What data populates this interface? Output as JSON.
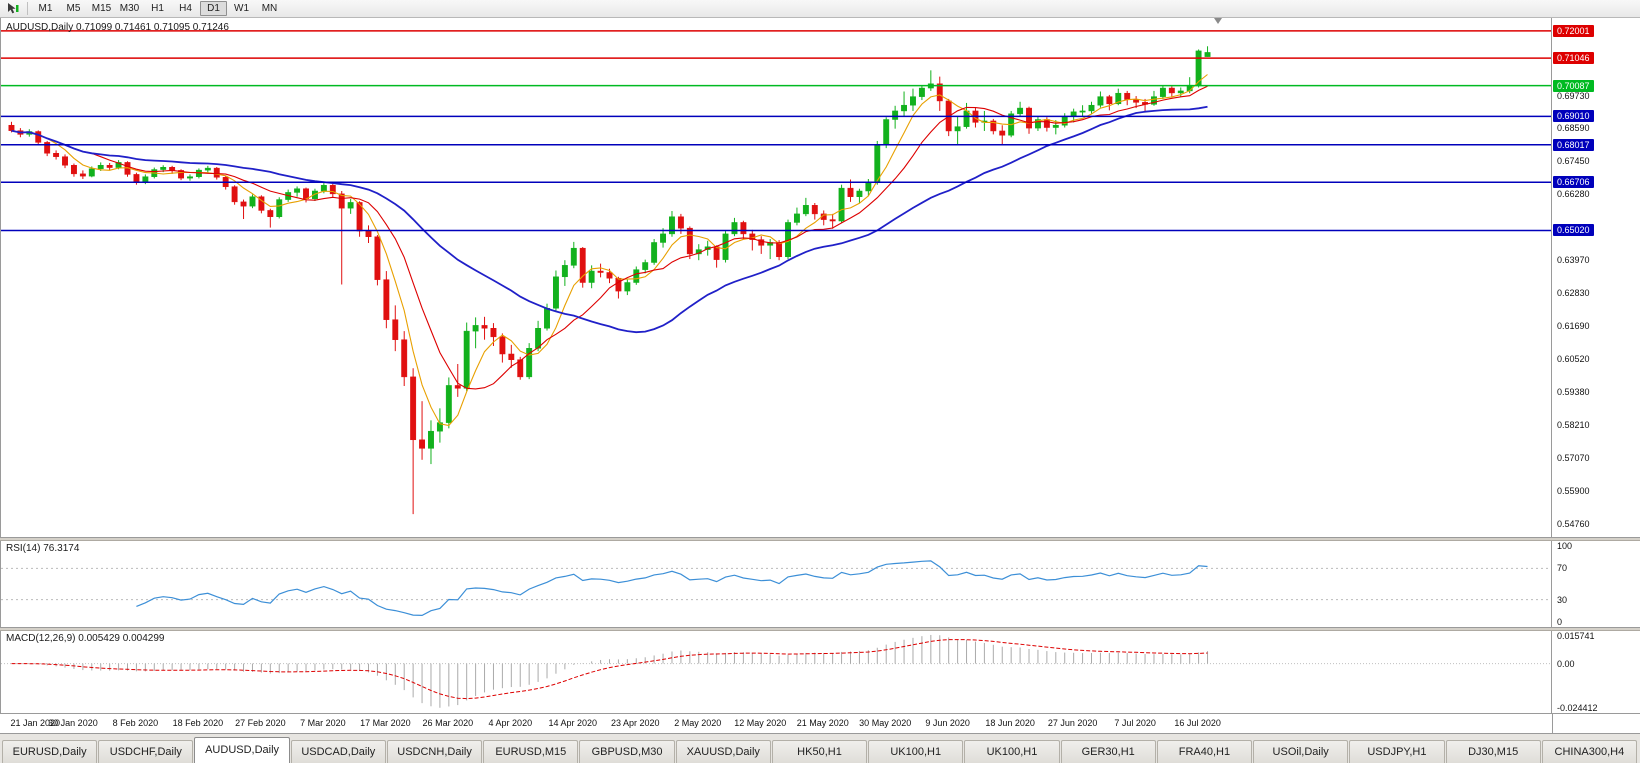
{
  "toolbar": {
    "timeframes": [
      "M1",
      "M5",
      "M15",
      "M30",
      "H1",
      "H4",
      "D1",
      "W1",
      "MN"
    ],
    "active_timeframe": "D1"
  },
  "main_chart": {
    "title": "AUDUSD,Daily 0.71099 0.71461 0.71095 0.71246"
  },
  "chart_data": {
    "type": "candlestick",
    "symbol": "AUDUSD",
    "period": "Daily",
    "ohlc": {
      "open": 0.71099,
      "high": 0.71461,
      "low": 0.71095,
      "close": 0.71246
    },
    "y_domain": [
      0.543,
      0.7245
    ],
    "price_ticks": [
      "0.69730",
      "0.68590",
      "0.67450",
      "0.66280",
      "0.63970",
      "0.62830",
      "0.61690",
      "0.60520",
      "0.59380",
      "0.58210",
      "0.57070",
      "0.55900",
      "0.54760"
    ],
    "levels": [
      {
        "value": 0.72001,
        "label": "0.72001",
        "color": "#dd0000"
      },
      {
        "value": 0.71046,
        "label": "0.71046",
        "color": "#dd0000"
      },
      {
        "value": 0.70087,
        "label": "0.70087",
        "color": "#00ba22"
      },
      {
        "value": 0.6901,
        "label": "0.69010",
        "color": "#0000bb"
      },
      {
        "value": 0.68017,
        "label": "0.68017",
        "color": "#0000bb"
      },
      {
        "value": 0.66706,
        "label": "0.66706",
        "color": "#0000bb"
      },
      {
        "value": 0.6502,
        "label": "0.65020",
        "color": "#0000bb"
      }
    ],
    "colors": {
      "bull": "#12b11d",
      "bear": "#e01010",
      "ma_fast": "#e8a000",
      "ma_mid": "#dd0000",
      "ma_slow": "#2020c8",
      "rsi": "#3c8fd7",
      "macd_hist": "#aaaaaa",
      "macd_signal": "#dd0000",
      "guide": "#bbbbbb"
    },
    "moving_averages": [
      {
        "period": 5,
        "color_key": "ma_fast"
      },
      {
        "period": 10,
        "color_key": "ma_mid"
      },
      {
        "period": 30,
        "color_key": "ma_slow"
      }
    ],
    "candles": [
      [
        0.687,
        0.6882,
        0.6845,
        0.6851
      ],
      [
        0.6851,
        0.686,
        0.6828,
        0.6838
      ],
      [
        0.6838,
        0.6856,
        0.683,
        0.6848
      ],
      [
        0.6848,
        0.6852,
        0.68,
        0.681
      ],
      [
        0.681,
        0.6815,
        0.6762,
        0.6772
      ],
      [
        0.6772,
        0.6782,
        0.675,
        0.676
      ],
      [
        0.676,
        0.6768,
        0.672,
        0.673
      ],
      [
        0.673,
        0.6736,
        0.669,
        0.67
      ],
      [
        0.67,
        0.6712,
        0.6682,
        0.6692
      ],
      [
        0.6692,
        0.6726,
        0.6688,
        0.6718
      ],
      [
        0.6718,
        0.674,
        0.671,
        0.673
      ],
      [
        0.673,
        0.6738,
        0.6712,
        0.6722
      ],
      [
        0.6722,
        0.6748,
        0.6716,
        0.674
      ],
      [
        0.674,
        0.6744,
        0.669,
        0.6698
      ],
      [
        0.6698,
        0.6704,
        0.6662,
        0.6672
      ],
      [
        0.6672,
        0.6698,
        0.6664,
        0.669
      ],
      [
        0.669,
        0.6722,
        0.6684,
        0.6715
      ],
      [
        0.6715,
        0.673,
        0.6706,
        0.6723
      ],
      [
        0.6723,
        0.6728,
        0.67,
        0.6712
      ],
      [
        0.6712,
        0.6716,
        0.6678,
        0.6685
      ],
      [
        0.6685,
        0.6698,
        0.6676,
        0.669
      ],
      [
        0.669,
        0.6719,
        0.6684,
        0.6713
      ],
      [
        0.6713,
        0.6728,
        0.6702,
        0.672
      ],
      [
        0.672,
        0.6724,
        0.668,
        0.6688
      ],
      [
        0.6688,
        0.6692,
        0.6645,
        0.6655
      ],
      [
        0.6655,
        0.666,
        0.6592,
        0.6602
      ],
      [
        0.6602,
        0.661,
        0.6542,
        0.6587
      ],
      [
        0.6587,
        0.6628,
        0.658,
        0.662
      ],
      [
        0.662,
        0.6625,
        0.6562,
        0.6572
      ],
      [
        0.6572,
        0.6578,
        0.6512,
        0.655
      ],
      [
        0.655,
        0.6618,
        0.6544,
        0.661
      ],
      [
        0.661,
        0.6645,
        0.6602,
        0.6635
      ],
      [
        0.6635,
        0.6656,
        0.662,
        0.6648
      ],
      [
        0.6648,
        0.6652,
        0.66,
        0.6613
      ],
      [
        0.6613,
        0.6648,
        0.6605,
        0.664
      ],
      [
        0.664,
        0.6672,
        0.6632,
        0.666
      ],
      [
        0.666,
        0.6666,
        0.6618,
        0.663
      ],
      [
        0.663,
        0.664,
        0.6313,
        0.658
      ],
      [
        0.658,
        0.6612,
        0.656,
        0.66
      ],
      [
        0.66,
        0.6604,
        0.648,
        0.65
      ],
      [
        0.65,
        0.652,
        0.6458,
        0.648
      ],
      [
        0.648,
        0.6486,
        0.631,
        0.633
      ],
      [
        0.633,
        0.636,
        0.616,
        0.619
      ],
      [
        0.619,
        0.624,
        0.608,
        0.612
      ],
      [
        0.612,
        0.615,
        0.5958,
        0.599
      ],
      [
        0.599,
        0.602,
        0.551,
        0.577
      ],
      [
        0.577,
        0.5905,
        0.57,
        0.574
      ],
      [
        0.574,
        0.5838,
        0.5685,
        0.58
      ],
      [
        0.58,
        0.588,
        0.576,
        0.583
      ],
      [
        0.583,
        0.5988,
        0.581,
        0.596
      ],
      [
        0.596,
        0.6035,
        0.592,
        0.595
      ],
      [
        0.595,
        0.618,
        0.594,
        0.615
      ],
      [
        0.615,
        0.6198,
        0.609,
        0.617
      ],
      [
        0.617,
        0.62,
        0.612,
        0.616
      ],
      [
        0.616,
        0.6178,
        0.6098,
        0.613
      ],
      [
        0.613,
        0.6142,
        0.604,
        0.607
      ],
      [
        0.607,
        0.6102,
        0.6022,
        0.605
      ],
      [
        0.605,
        0.606,
        0.598,
        0.599
      ],
      [
        0.599,
        0.6108,
        0.5982,
        0.609
      ],
      [
        0.609,
        0.6186,
        0.608,
        0.616
      ],
      [
        0.616,
        0.6246,
        0.6152,
        0.623
      ],
      [
        0.623,
        0.6362,
        0.6222,
        0.634
      ],
      [
        0.634,
        0.6398,
        0.6308,
        0.638
      ],
      [
        0.638,
        0.6462,
        0.637,
        0.644
      ],
      [
        0.644,
        0.6444,
        0.6302,
        0.632
      ],
      [
        0.632,
        0.638,
        0.63,
        0.636
      ],
      [
        0.636,
        0.6386,
        0.6338,
        0.6355
      ],
      [
        0.6355,
        0.6368,
        0.6318,
        0.6335
      ],
      [
        0.6335,
        0.634,
        0.6264,
        0.629
      ],
      [
        0.629,
        0.633,
        0.6276,
        0.632
      ],
      [
        0.632,
        0.6376,
        0.6312,
        0.6365
      ],
      [
        0.6365,
        0.64,
        0.6352,
        0.639
      ],
      [
        0.639,
        0.6472,
        0.6382,
        0.646
      ],
      [
        0.646,
        0.651,
        0.6442,
        0.649
      ],
      [
        0.649,
        0.657,
        0.648,
        0.655
      ],
      [
        0.655,
        0.656,
        0.649,
        0.651
      ],
      [
        0.651,
        0.6516,
        0.6402,
        0.642
      ],
      [
        0.642,
        0.6454,
        0.6398,
        0.6435
      ],
      [
        0.6435,
        0.6466,
        0.6414,
        0.6445
      ],
      [
        0.6445,
        0.645,
        0.6372,
        0.64
      ],
      [
        0.64,
        0.65,
        0.639,
        0.649
      ],
      [
        0.649,
        0.6546,
        0.6482,
        0.653
      ],
      [
        0.653,
        0.6536,
        0.6472,
        0.649
      ],
      [
        0.649,
        0.6504,
        0.6432,
        0.647
      ],
      [
        0.647,
        0.6482,
        0.642,
        0.645
      ],
      [
        0.645,
        0.6472,
        0.6402,
        0.646
      ],
      [
        0.646,
        0.6468,
        0.6398,
        0.641
      ],
      [
        0.641,
        0.654,
        0.6402,
        0.653
      ],
      [
        0.653,
        0.6582,
        0.652,
        0.656
      ],
      [
        0.656,
        0.6616,
        0.6552,
        0.659
      ],
      [
        0.659,
        0.6598,
        0.654,
        0.656
      ],
      [
        0.656,
        0.6572,
        0.652,
        0.654
      ],
      [
        0.654,
        0.656,
        0.6508,
        0.6535
      ],
      [
        0.6535,
        0.6662,
        0.6528,
        0.665
      ],
      [
        0.665,
        0.668,
        0.6602,
        0.662
      ],
      [
        0.662,
        0.6648,
        0.6596,
        0.664
      ],
      [
        0.664,
        0.6682,
        0.6622,
        0.667
      ],
      [
        0.667,
        0.6815,
        0.6662,
        0.68
      ],
      [
        0.68,
        0.6898,
        0.679,
        0.689
      ],
      [
        0.689,
        0.6938,
        0.6858,
        0.692
      ],
      [
        0.692,
        0.6988,
        0.69,
        0.694
      ],
      [
        0.694,
        0.6998,
        0.692,
        0.697
      ],
      [
        0.697,
        0.701,
        0.6958,
        0.7
      ],
      [
        0.7,
        0.7062,
        0.699,
        0.7015
      ],
      [
        0.7015,
        0.704,
        0.692,
        0.6955
      ],
      [
        0.6955,
        0.6962,
        0.6832,
        0.685
      ],
      [
        0.685,
        0.6902,
        0.68,
        0.6865
      ],
      [
        0.6865,
        0.6948,
        0.6858,
        0.692
      ],
      [
        0.692,
        0.6932,
        0.6862,
        0.688
      ],
      [
        0.688,
        0.692,
        0.685,
        0.6885
      ],
      [
        0.6885,
        0.6892,
        0.6838,
        0.685
      ],
      [
        0.685,
        0.687,
        0.68,
        0.6835
      ],
      [
        0.6835,
        0.692,
        0.6828,
        0.691
      ],
      [
        0.691,
        0.6952,
        0.69,
        0.693
      ],
      [
        0.693,
        0.6935,
        0.684,
        0.686
      ],
      [
        0.686,
        0.6902,
        0.685,
        0.689
      ],
      [
        0.689,
        0.6898,
        0.6848,
        0.6862
      ],
      [
        0.6862,
        0.6888,
        0.6838,
        0.687
      ],
      [
        0.687,
        0.6912,
        0.6862,
        0.69
      ],
      [
        0.69,
        0.6928,
        0.688,
        0.6917
      ],
      [
        0.6917,
        0.694,
        0.69,
        0.692
      ],
      [
        0.692,
        0.6952,
        0.691,
        0.694
      ],
      [
        0.694,
        0.6988,
        0.6932,
        0.697
      ],
      [
        0.697,
        0.6976,
        0.6922,
        0.6945
      ],
      [
        0.6945,
        0.6998,
        0.694,
        0.6982
      ],
      [
        0.6982,
        0.699,
        0.694,
        0.696
      ],
      [
        0.696,
        0.6972,
        0.693,
        0.695
      ],
      [
        0.695,
        0.6962,
        0.692,
        0.6943
      ],
      [
        0.6943,
        0.699,
        0.6938,
        0.697
      ],
      [
        0.697,
        0.701,
        0.6962,
        0.7
      ],
      [
        0.7,
        0.7006,
        0.6968,
        0.6983
      ],
      [
        0.6983,
        0.7002,
        0.697,
        0.699
      ],
      [
        0.699,
        0.7038,
        0.6982,
        0.701
      ],
      [
        0.701,
        0.7135,
        0.7002,
        0.713
      ],
      [
        0.71099,
        0.71461,
        0.71095,
        0.71246
      ]
    ],
    "dates": [
      "21 Jan 2020",
      "30 Jan 2020",
      "8 Feb 2020",
      "18 Feb 2020",
      "27 Feb 2020",
      "7 Mar 2020",
      "17 Mar 2020",
      "26 Mar 2020",
      "4 Apr 2020",
      "14 Apr 2020",
      "23 Apr 2020",
      "2 May 2020",
      "12 May 2020",
      "21 May 2020",
      "30 May 2020",
      "9 Jun 2020",
      "18 Jun 2020",
      "27 Jun 2020",
      "7 Jul 2020",
      "16 Jul 2020"
    ],
    "date_candle_stride": 7,
    "rsi": {
      "label": "RSI(14) 76.3174",
      "period": 14,
      "value": 76.3174,
      "ticks": [
        100,
        70,
        30,
        0
      ],
      "guide_levels": [
        70,
        30
      ]
    },
    "macd": {
      "label": "MACD(12,26,9) 0.005429 0.004299",
      "fast": 12,
      "slow": 26,
      "signal_period": 9,
      "main_value": 0.005429,
      "signal_value": 0.004299,
      "ticks": [
        "0.015741",
        "0.00",
        "-0.024412"
      ],
      "range": [
        -0.024412,
        0.015741
      ]
    }
  },
  "tabs": {
    "items": [
      "EURUSD,Daily",
      "USDCHF,Daily",
      "AUDUSD,Daily",
      "USDCAD,Daily",
      "USDCNH,Daily",
      "EURUSD,M15",
      "GBPUSD,M30",
      "XAUUSD,Daily",
      "HK50,H1",
      "UK100,H1",
      "UK100,H1",
      "GER30,H1",
      "FRA40,H1",
      "USOil,Daily",
      "USDJPY,H1",
      "DJ30,M15",
      "CHINA300,H4"
    ],
    "active_index": 2
  }
}
